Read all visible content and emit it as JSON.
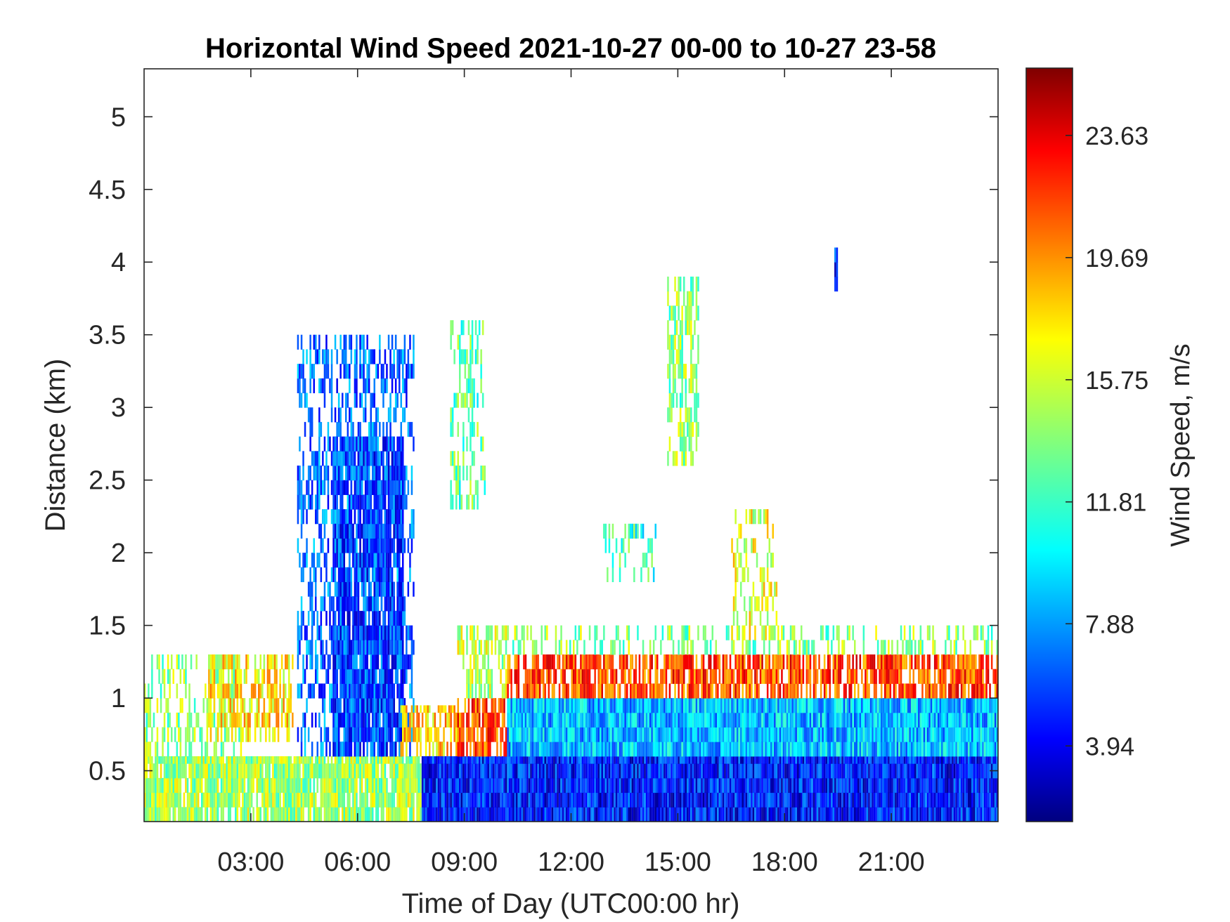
{
  "chart_data": {
    "type": "heatmap",
    "title": "Horizontal Wind Speed 2021-10-27 00-00 to 10-27 23-58",
    "xlabel": "Time of Day (UTC00:00 hr)",
    "ylabel": "Distance (km)",
    "x_unit": "hour of day (UTC)",
    "xlim": [
      0,
      24
    ],
    "ylim": [
      0.15,
      5.33
    ],
    "x_ticks": [
      3,
      6,
      9,
      12,
      15,
      18,
      21
    ],
    "x_tick_labels": [
      "03:00",
      "06:00",
      "09:00",
      "12:00",
      "15:00",
      "18:00",
      "21:00"
    ],
    "y_ticks": [
      0.5,
      1,
      1.5,
      2,
      2.5,
      3,
      3.5,
      4,
      4.5,
      5
    ],
    "y_tick_labels": [
      "0.5",
      "1",
      "1.5",
      "2",
      "2.5",
      "3",
      "3.5",
      "4",
      "4.5",
      "5"
    ],
    "grid": false,
    "colorbar": {
      "label": "Wind Speed, m/s",
      "colormap": "jet",
      "clim": [
        1.5,
        25.8
      ],
      "ticks": [
        3.94,
        7.88,
        11.81,
        15.75,
        19.69,
        23.63
      ],
      "tick_labels": [
        "3.94",
        "7.88",
        "11.81",
        "15.75",
        "19.69",
        "23.63"
      ]
    },
    "regions": [
      {
        "t": [
          0.0,
          8.0
        ],
        "z": [
          0.15,
          0.6
        ],
        "speed": 14.5,
        "fill": 0.9
      },
      {
        "t": [
          0.0,
          2.8
        ],
        "z": [
          0.6,
          1.3
        ],
        "speed": 14,
        "fill": 0.35
      },
      {
        "t": [
          1.8,
          4.2
        ],
        "z": [
          0.7,
          1.3
        ],
        "speed": 17,
        "fill": 0.6
      },
      {
        "t": [
          4.3,
          7.6
        ],
        "z": [
          0.6,
          3.5
        ],
        "speed": 7,
        "fill": 0.45
      },
      {
        "t": [
          5.3,
          7.3
        ],
        "z": [
          0.6,
          2.8
        ],
        "speed": 6,
        "fill": 0.8
      },
      {
        "t": [
          7.2,
          8.8
        ],
        "z": [
          0.6,
          0.95
        ],
        "speed": 18,
        "fill": 0.6
      },
      {
        "t": [
          7.8,
          24.0
        ],
        "z": [
          0.15,
          0.6
        ],
        "speed": 5,
        "fill": 1.0
      },
      {
        "t": [
          8.8,
          10.2
        ],
        "z": [
          0.6,
          1.0
        ],
        "speed": 21,
        "fill": 0.75
      },
      {
        "t": [
          8.8,
          10.2
        ],
        "z": [
          1.0,
          1.5
        ],
        "speed": 15,
        "fill": 0.5
      },
      {
        "t": [
          10.2,
          24.0
        ],
        "z": [
          0.6,
          1.0
        ],
        "speed": 9,
        "fill": 1.0
      },
      {
        "t": [
          10.2,
          24.0
        ],
        "z": [
          1.0,
          1.3
        ],
        "speed": 21,
        "fill": 0.75
      },
      {
        "t": [
          10.2,
          24.0
        ],
        "z": [
          1.3,
          1.5
        ],
        "speed": 14,
        "fill": 0.35
      },
      {
        "t": [
          8.6,
          9.6
        ],
        "z": [
          2.3,
          3.6
        ],
        "speed": 13,
        "fill": 0.4
      },
      {
        "t": [
          14.7,
          15.6
        ],
        "z": [
          2.6,
          3.9
        ],
        "speed": 14,
        "fill": 0.5
      },
      {
        "t": [
          16.5,
          17.8
        ],
        "z": [
          1.4,
          2.3
        ],
        "speed": 16,
        "fill": 0.3
      },
      {
        "t": [
          12.9,
          14.4
        ],
        "z": [
          1.8,
          2.2
        ],
        "speed": 12,
        "fill": 0.25
      },
      {
        "t": [
          19.4,
          19.5
        ],
        "z": [
          3.8,
          4.1
        ],
        "speed": 5,
        "fill": 1.0
      }
    ]
  }
}
